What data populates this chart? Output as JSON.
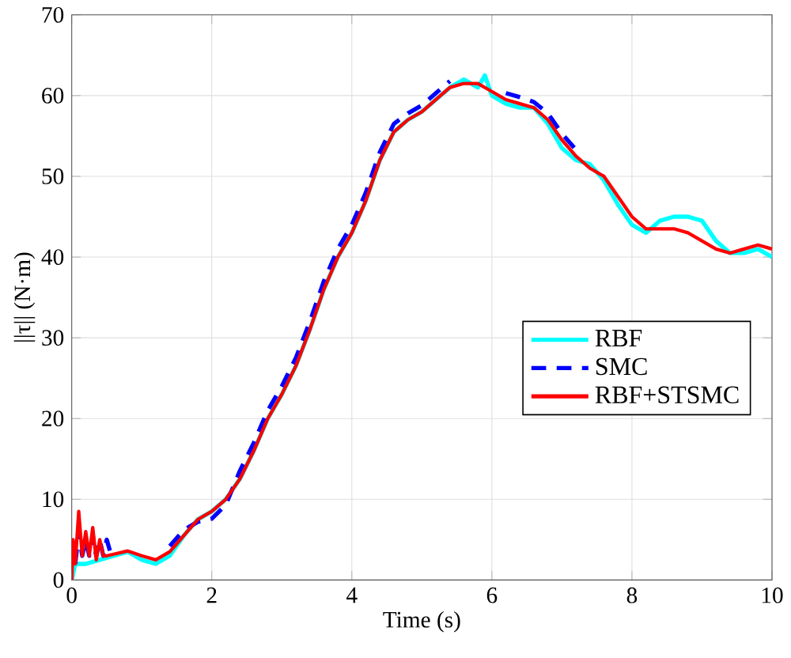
{
  "chart_data": {
    "type": "line",
    "xlabel": "Time (s)",
    "ylabel": "||τ|| (N·m)",
    "xlim": [
      0,
      10
    ],
    "ylim": [
      0,
      70
    ],
    "xticks": [
      0,
      2,
      4,
      6,
      8,
      10
    ],
    "yticks": [
      0,
      10,
      20,
      30,
      40,
      50,
      60,
      70
    ],
    "grid": true,
    "legend": "right",
    "series": [
      {
        "name": "RBF",
        "color": "#00ffff",
        "line_style": "solid",
        "x": [
          0,
          0.05,
          0.2,
          0.4,
          0.6,
          0.8,
          1.0,
          1.2,
          1.4,
          1.6,
          1.8,
          2.0,
          2.2,
          2.4,
          2.6,
          2.8,
          3.0,
          3.2,
          3.4,
          3.6,
          3.8,
          4.0,
          4.2,
          4.4,
          4.6,
          4.8,
          5.0,
          5.2,
          5.4,
          5.6,
          5.8,
          5.9,
          6.0,
          6.2,
          6.4,
          6.6,
          6.8,
          7.0,
          7.2,
          7.4,
          7.6,
          7.8,
          8.0,
          8.2,
          8.4,
          8.6,
          8.8,
          9.0,
          9.2,
          9.4,
          9.6,
          9.8,
          10
        ],
        "values": [
          0,
          2,
          2,
          2.5,
          3,
          3.5,
          2.5,
          2,
          3,
          5.5,
          7.5,
          8.5,
          10,
          12.5,
          16,
          20,
          23,
          26.5,
          31,
          36,
          40,
          43,
          47,
          52,
          55.5,
          57,
          58,
          59.5,
          61,
          62,
          61,
          62.5,
          60,
          59,
          58.5,
          58.5,
          56.5,
          53.5,
          52,
          51.5,
          49.5,
          46.5,
          44,
          43,
          44.5,
          45,
          45,
          44.5,
          42,
          40.5,
          40.5,
          41,
          40
        ]
      },
      {
        "name": "SMC",
        "color": "#0000ff",
        "line_style": "dashed",
        "x": [
          0.05,
          0.1,
          0.15,
          0.2,
          0.25,
          0.3,
          0.35,
          0.4,
          0.45,
          0.5,
          0.55,
          0.6,
          0.8,
          1.0,
          1.2,
          1.4,
          1.6,
          1.8,
          2.0,
          2.2,
          2.4,
          2.6,
          2.8,
          3.0,
          3.2,
          3.4,
          3.6,
          3.8,
          4.0,
          4.2,
          4.4,
          4.6,
          4.8,
          5.0,
          5.2,
          5.4,
          5.6,
          5.8,
          6.0,
          6.2,
          6.4,
          6.6,
          6.8,
          7.0,
          7.2
        ],
        "values": [
          2,
          6,
          3,
          5,
          3,
          5.5,
          3,
          5,
          3,
          5,
          3.5,
          3.2,
          null,
          null,
          null,
          4.2,
          6.2,
          7.2,
          7.6,
          9.3,
          13.5,
          17,
          21,
          24,
          27.5,
          32,
          37,
          41,
          44,
          48,
          53,
          56.5,
          57.8,
          58.8,
          60.3,
          61.8,
          null,
          null,
          null,
          60.3,
          59.8,
          59.2,
          57.8,
          55.3,
          53.3
        ]
      },
      {
        "name": "RBF+STSMC",
        "color": "#ff0000",
        "line_style": "solid",
        "x": [
          0,
          0.02,
          0.05,
          0.1,
          0.15,
          0.2,
          0.25,
          0.3,
          0.35,
          0.4,
          0.45,
          0.5,
          0.6,
          0.8,
          1.0,
          1.2,
          1.4,
          1.6,
          1.8,
          2.0,
          2.2,
          2.4,
          2.6,
          2.8,
          3.0,
          3.2,
          3.4,
          3.6,
          3.8,
          4.0,
          4.2,
          4.4,
          4.6,
          4.8,
          5.0,
          5.2,
          5.4,
          5.6,
          5.8,
          6.0,
          6.2,
          6.4,
          6.6,
          6.8,
          7.0,
          7.2,
          7.4,
          7.6,
          7.8,
          8.0,
          8.2,
          8.4,
          8.6,
          8.8,
          9.0,
          9.2,
          9.4,
          9.6,
          9.8,
          10
        ],
        "values": [
          0,
          5,
          2,
          8.5,
          3,
          6,
          3,
          6.5,
          2.5,
          5,
          3,
          3,
          3.2,
          3.6,
          3.0,
          2.5,
          3.5,
          5.5,
          7.5,
          8.5,
          10,
          12.5,
          16,
          20,
          23,
          26.5,
          31,
          36,
          40,
          43,
          47,
          52,
          55.5,
          57,
          58,
          59.5,
          61,
          61.5,
          61.5,
          60.5,
          59.5,
          59,
          58.5,
          57,
          54.5,
          52.5,
          51,
          50,
          47.5,
          45,
          43.5,
          43.5,
          43.5,
          43,
          42,
          41,
          40.5,
          41,
          41.5,
          41
        ]
      }
    ]
  }
}
